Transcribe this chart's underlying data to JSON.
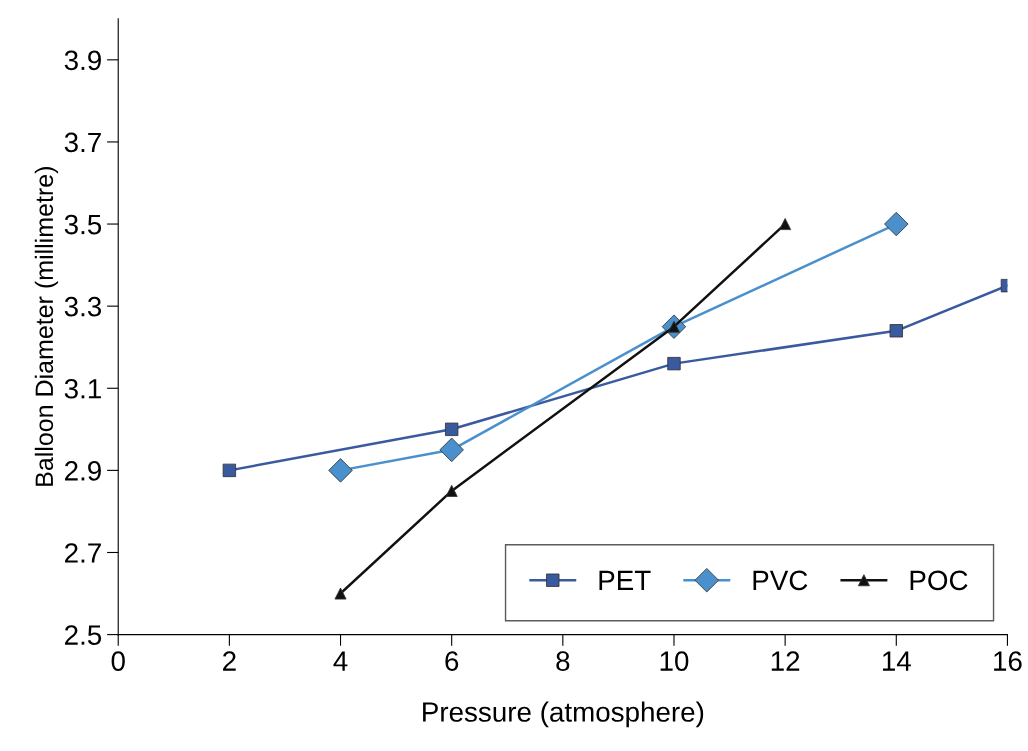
{
  "chart_data": {
    "type": "line",
    "xlabel": "Pressure (atmosphere)",
    "ylabel": "Balloon Diameter (millimetre)",
    "xlim": [
      0,
      16
    ],
    "xticks": [
      0,
      2,
      4,
      6,
      8,
      10,
      12,
      14,
      16
    ],
    "ylim": [
      2.5,
      4.0
    ],
    "yticks": [
      2.5,
      2.7,
      2.9,
      3.1,
      3.3,
      3.5,
      3.7,
      3.9
    ],
    "grid": false,
    "legend": "bottom right",
    "line_style": "solid",
    "series": [
      {
        "name": "PET",
        "color": "#3a5aa0",
        "marker": "square",
        "x": [
          2,
          6,
          10,
          14,
          16
        ],
        "values": [
          2.9,
          3.0,
          3.16,
          3.24,
          3.35
        ]
      },
      {
        "name": "PVC",
        "color": "#4a90cc",
        "marker": "diamond",
        "x": [
          4,
          6,
          10,
          14
        ],
        "values": [
          2.9,
          2.95,
          3.25,
          3.5
        ]
      },
      {
        "name": "POC",
        "color": "#111111",
        "marker": "triangle",
        "x": [
          4,
          6,
          10,
          12
        ],
        "values": [
          2.6,
          2.85,
          3.25,
          3.5
        ]
      }
    ]
  }
}
